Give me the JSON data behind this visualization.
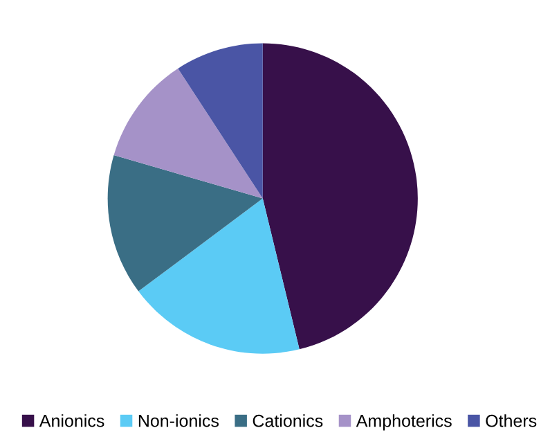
{
  "chart_data": {
    "type": "pie",
    "categories": [
      "Anionics",
      "Non-ionics",
      "Cationics",
      "Amphoterics",
      "Others"
    ],
    "values": [
      46.2,
      18.6,
      14.7,
      11.3,
      9.2
    ],
    "colors": [
      "#37104a",
      "#5bcbf5",
      "#3a6e85",
      "#a592c8",
      "#4a55a5"
    ],
    "legend": "bottom"
  }
}
